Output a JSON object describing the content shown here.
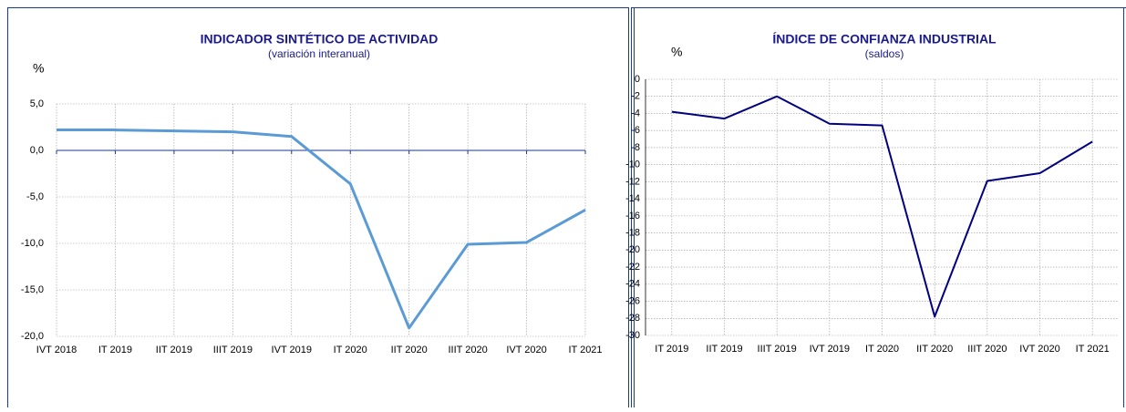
{
  "chart_data": [
    {
      "type": "line",
      "title": "INDICADOR SINTÉTICO DE ACTIVIDAD",
      "subtitle": "(variación interanual)",
      "y_label": "%",
      "categories": [
        "IVT 2018",
        "IT 2019",
        "IIT 2019",
        "IIIT 2019",
        "IVT 2019",
        "IT 2020",
        "IIT 2020",
        "IIIT 2020",
        "IVT 2020",
        "IT 2021"
      ],
      "series": [
        {
          "name": "Indicador sintético de actividad",
          "color": "#5b9bd5",
          "values": [
            2.2,
            2.2,
            2.1,
            2.0,
            1.5,
            -3.6,
            -19.1,
            -10.1,
            -9.9,
            -6.4
          ]
        }
      ],
      "ylim": [
        -20,
        5
      ],
      "yticks": [
        {
          "value": 5,
          "label": "5,0"
        },
        {
          "value": 0,
          "label": "0,0"
        },
        {
          "value": -5,
          "label": "-5,0"
        },
        {
          "value": -10,
          "label": "-10,0"
        },
        {
          "value": -15,
          "label": "-15,0"
        },
        {
          "value": -20,
          "label": "-20,0"
        }
      ],
      "grid": true
    },
    {
      "type": "line",
      "title": "ÍNDICE DE CONFIANZA INDUSTRIAL",
      "subtitle": "(saldos)",
      "y_label": "%",
      "categories": [
        "IT 2019",
        "IIT 2019",
        "IIIT 2019",
        "IVT 2019",
        "IT 2020",
        "IIT 2020",
        "IIIT 2020",
        "IVT 2020",
        "IT 2021"
      ],
      "series": [
        {
          "name": "Índice de confianza industrial",
          "color": "#000080",
          "values": [
            -3.8,
            -4.6,
            -2.0,
            -5.2,
            -5.4,
            -27.8,
            -11.9,
            -11.0,
            -7.3
          ]
        }
      ],
      "ylim": [
        -30,
        0
      ],
      "yticks": [
        0,
        -2,
        -4,
        -6,
        -8,
        -10,
        -12,
        -14,
        -16,
        -18,
        -20,
        -22,
        -24,
        -26,
        -28,
        -30
      ],
      "grid": true
    }
  ]
}
